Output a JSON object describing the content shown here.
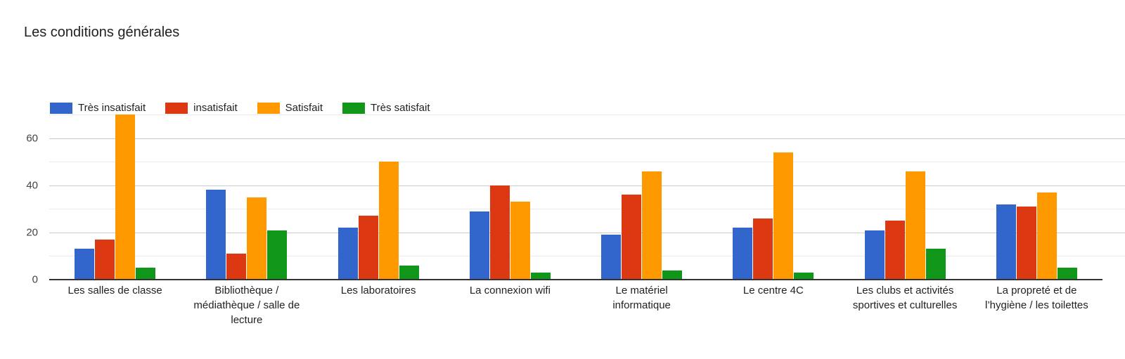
{
  "title": "Les conditions générales",
  "colors": {
    "tres_insatisfait": "#3366cc",
    "insatisfait": "#dc3912",
    "satisfait": "#ff9900",
    "tres_satisfait": "#109618"
  },
  "legend": [
    {
      "label": "Très insatisfait",
      "color": "#3366cc"
    },
    {
      "label": "insatisfait",
      "color": "#dc3912"
    },
    {
      "label": "Satisfait",
      "color": "#ff9900"
    },
    {
      "label": "Très satisfait",
      "color": "#109618"
    }
  ],
  "y_ticks": [
    "0",
    "20",
    "40",
    "60"
  ],
  "chart_data": {
    "type": "bar",
    "title": "Les conditions générales",
    "xlabel": "",
    "ylabel": "",
    "ylim": [
      0,
      70
    ],
    "grid": true,
    "legend_position": "top",
    "y_ticks": [
      0,
      20,
      40,
      60
    ],
    "categories": [
      "Les salles de classe",
      "Bibliothèque / médiathèque / salle de lecture",
      "Les laboratoires",
      "La connexion wifi",
      "Le matériel informatique",
      "Le centre 4C",
      "Les clubs et activités sportives et culturelles",
      "La propreté et de l’hygiène / les toilettes"
    ],
    "series": [
      {
        "name": "Très insatisfait",
        "color": "#3366cc",
        "values": [
          13,
          38,
          22,
          29,
          19,
          22,
          21,
          32
        ]
      },
      {
        "name": "insatisfait",
        "color": "#dc3912",
        "values": [
          17,
          11,
          27,
          40,
          36,
          26,
          25,
          31
        ]
      },
      {
        "name": "Satisfait",
        "color": "#ff9900",
        "values": [
          70,
          35,
          50,
          33,
          46,
          54,
          46,
          37
        ]
      },
      {
        "name": "Très satisfait",
        "color": "#109618",
        "values": [
          5,
          21,
          6,
          3,
          4,
          3,
          13,
          5
        ]
      }
    ]
  },
  "x_labels": [
    "Les salles de classe",
    "Bibliothèque /\nmédiathèque / salle de\nlecture",
    "Les laboratoires",
    "La connexion wifi",
    "Le matériel\ninformatique",
    "Le centre 4C",
    "Les clubs et activités\nsportives et culturelles",
    "La propreté et de\nl’hygiène / les toilettes"
  ]
}
